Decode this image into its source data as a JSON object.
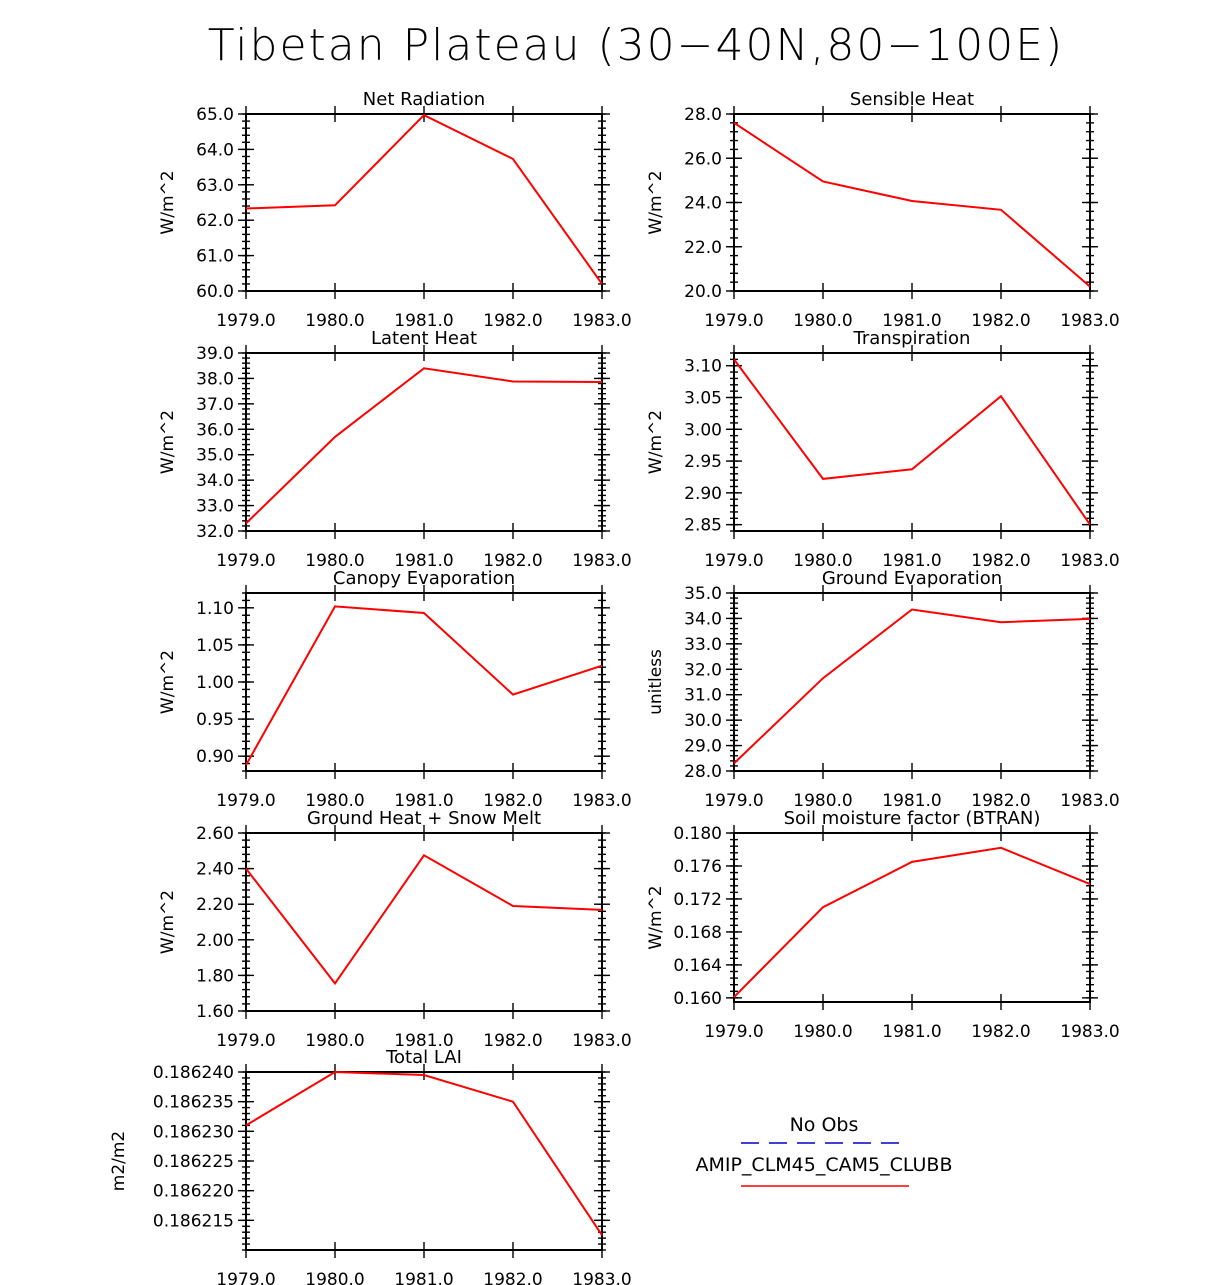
{
  "figure": {
    "title": "Tibetan Plateau (30−40N,80−100E)"
  },
  "legend": {
    "entries": [
      {
        "name": "No Obs",
        "color": "#0000cc",
        "style": "dashed"
      },
      {
        "name": "AMIP_CLM45_CAM5_CLUBB",
        "color": "#ff0000",
        "style": "solid"
      }
    ]
  },
  "chart_data": [
    {
      "type": "line",
      "title": "Net Radiation",
      "ylabel": "W/m^2",
      "x": [
        1979,
        1980,
        1981,
        1982,
        1983
      ],
      "xlim": [
        1979,
        1983
      ],
      "xticks": [
        "1979.0",
        "1980.0",
        "1981.0",
        "1982.0",
        "1983.0"
      ],
      "ylim": [
        60,
        65
      ],
      "yticks": [
        "60.0",
        "61.0",
        "62.0",
        "63.0",
        "64.0",
        "65.0"
      ],
      "series": [
        {
          "name": "AMIP_CLM45_CAM5_CLUBB",
          "color": "#ff0000",
          "values": [
            62.33,
            62.42,
            64.97,
            63.73,
            60.2
          ]
        }
      ]
    },
    {
      "type": "line",
      "title": "Sensible Heat",
      "ylabel": "W/m^2",
      "x": [
        1979,
        1980,
        1981,
        1982,
        1983
      ],
      "xlim": [
        1979,
        1983
      ],
      "xticks": [
        "1979.0",
        "1980.0",
        "1981.0",
        "1982.0",
        "1983.0"
      ],
      "ylim": [
        20,
        28
      ],
      "yticks": [
        "20.0",
        "22.0",
        "24.0",
        "26.0",
        "28.0"
      ],
      "series": [
        {
          "name": "AMIP_CLM45_CAM5_CLUBB",
          "color": "#ff0000",
          "values": [
            27.6,
            24.95,
            24.07,
            23.67,
            20.2
          ]
        }
      ]
    },
    {
      "type": "line",
      "title": "Latent Heat",
      "ylabel": "W/m^2",
      "x": [
        1979,
        1980,
        1981,
        1982,
        1983
      ],
      "xlim": [
        1979,
        1983
      ],
      "xticks": [
        "1979.0",
        "1980.0",
        "1981.0",
        "1982.0",
        "1983.0"
      ],
      "ylim": [
        32,
        39
      ],
      "yticks": [
        "32.0",
        "33.0",
        "34.0",
        "35.0",
        "36.0",
        "37.0",
        "38.0",
        "39.0"
      ],
      "series": [
        {
          "name": "AMIP_CLM45_CAM5_CLUBB",
          "color": "#ff0000",
          "values": [
            32.3,
            35.7,
            38.4,
            37.88,
            37.86
          ]
        }
      ]
    },
    {
      "type": "line",
      "title": "Transpiration",
      "ylabel": "W/m^2",
      "x": [
        1979,
        1980,
        1981,
        1982,
        1983
      ],
      "xlim": [
        1979,
        1983
      ],
      "xticks": [
        "1979.0",
        "1980.0",
        "1981.0",
        "1982.0",
        "1983.0"
      ],
      "ylim": [
        2.84,
        3.12
      ],
      "yticks": [
        "2.85",
        "2.90",
        "2.95",
        "3.00",
        "3.05",
        "3.10"
      ],
      "series": [
        {
          "name": "AMIP_CLM45_CAM5_CLUBB",
          "color": "#ff0000",
          "values": [
            3.11,
            2.922,
            2.937,
            3.052,
            2.85
          ]
        }
      ]
    },
    {
      "type": "line",
      "title": "Canopy Evaporation",
      "ylabel": "W/m^2",
      "x": [
        1979,
        1980,
        1981,
        1982,
        1983
      ],
      "xlim": [
        1979,
        1983
      ],
      "xticks": [
        "1979.0",
        "1980.0",
        "1981.0",
        "1982.0",
        "1983.0"
      ],
      "ylim": [
        0.88,
        1.12
      ],
      "yticks": [
        "0.90",
        "0.95",
        "1.00",
        "1.05",
        "1.10"
      ],
      "series": [
        {
          "name": "AMIP_CLM45_CAM5_CLUBB",
          "color": "#ff0000",
          "values": [
            0.888,
            1.102,
            1.093,
            0.983,
            1.022
          ]
        }
      ]
    },
    {
      "type": "line",
      "title": "Ground Evaporation",
      "ylabel": "unitless",
      "x": [
        1979,
        1980,
        1981,
        1982,
        1983
      ],
      "xlim": [
        1979,
        1983
      ],
      "xticks": [
        "1979.0",
        "1980.0",
        "1981.0",
        "1982.0",
        "1983.0"
      ],
      "ylim": [
        28,
        35
      ],
      "yticks": [
        "28.0",
        "29.0",
        "30.0",
        "31.0",
        "32.0",
        "33.0",
        "34.0",
        "35.0"
      ],
      "series": [
        {
          "name": "AMIP_CLM45_CAM5_CLUBB",
          "color": "#ff0000",
          "values": [
            28.3,
            31.65,
            34.35,
            33.85,
            33.98
          ]
        }
      ]
    },
    {
      "type": "line",
      "title": "Ground Heat + Snow Melt",
      "ylabel": "W/m^2",
      "x": [
        1979,
        1980,
        1981,
        1982,
        1983
      ],
      "xlim": [
        1979,
        1983
      ],
      "xticks": [
        "1979.0",
        "1980.0",
        "1981.0",
        "1982.0",
        "1983.0"
      ],
      "ylim": [
        1.6,
        2.6
      ],
      "yticks": [
        "1.60",
        "1.80",
        "2.00",
        "2.20",
        "2.40",
        "2.60"
      ],
      "series": [
        {
          "name": "AMIP_CLM45_CAM5_CLUBB",
          "color": "#ff0000",
          "values": [
            2.4,
            1.755,
            2.475,
            2.19,
            2.168
          ]
        }
      ]
    },
    {
      "type": "line",
      "title": "Soil moisture factor (BTRAN)",
      "ylabel": "W/m^2",
      "x": [
        1979,
        1980,
        1981,
        1982,
        1983
      ],
      "xlim": [
        1979,
        1983
      ],
      "xticks": [
        "1979.0",
        "1980.0",
        "1981.0",
        "1982.0",
        "1983.0"
      ],
      "ylim": [
        0.1595,
        0.18
      ],
      "yticks": [
        "0.160",
        "0.164",
        "0.168",
        "0.172",
        "0.176",
        "0.180"
      ],
      "series": [
        {
          "name": "AMIP_CLM45_CAM5_CLUBB",
          "color": "#ff0000",
          "values": [
            0.1601,
            0.171,
            0.1765,
            0.1782,
            0.1738
          ]
        }
      ]
    },
    {
      "type": "line",
      "title": "Total LAI",
      "ylabel": "m2/m2",
      "x": [
        1979,
        1980,
        1981,
        1982,
        1983
      ],
      "xlim": [
        1979,
        1983
      ],
      "xticks": [
        "1979.0",
        "1980.0",
        "1981.0",
        "1982.0",
        "1983.0"
      ],
      "ylim": [
        0.18621,
        0.18624
      ],
      "yticks": [
        "0.186215",
        "0.186220",
        "0.186225",
        "0.186230",
        "0.186235",
        "0.186240"
      ],
      "series": [
        {
          "name": "AMIP_CLM45_CAM5_CLUBB",
          "color": "#ff0000",
          "values": [
            0.186231,
            0.18624,
            0.1862395,
            0.186235,
            0.1862125
          ]
        }
      ]
    }
  ]
}
